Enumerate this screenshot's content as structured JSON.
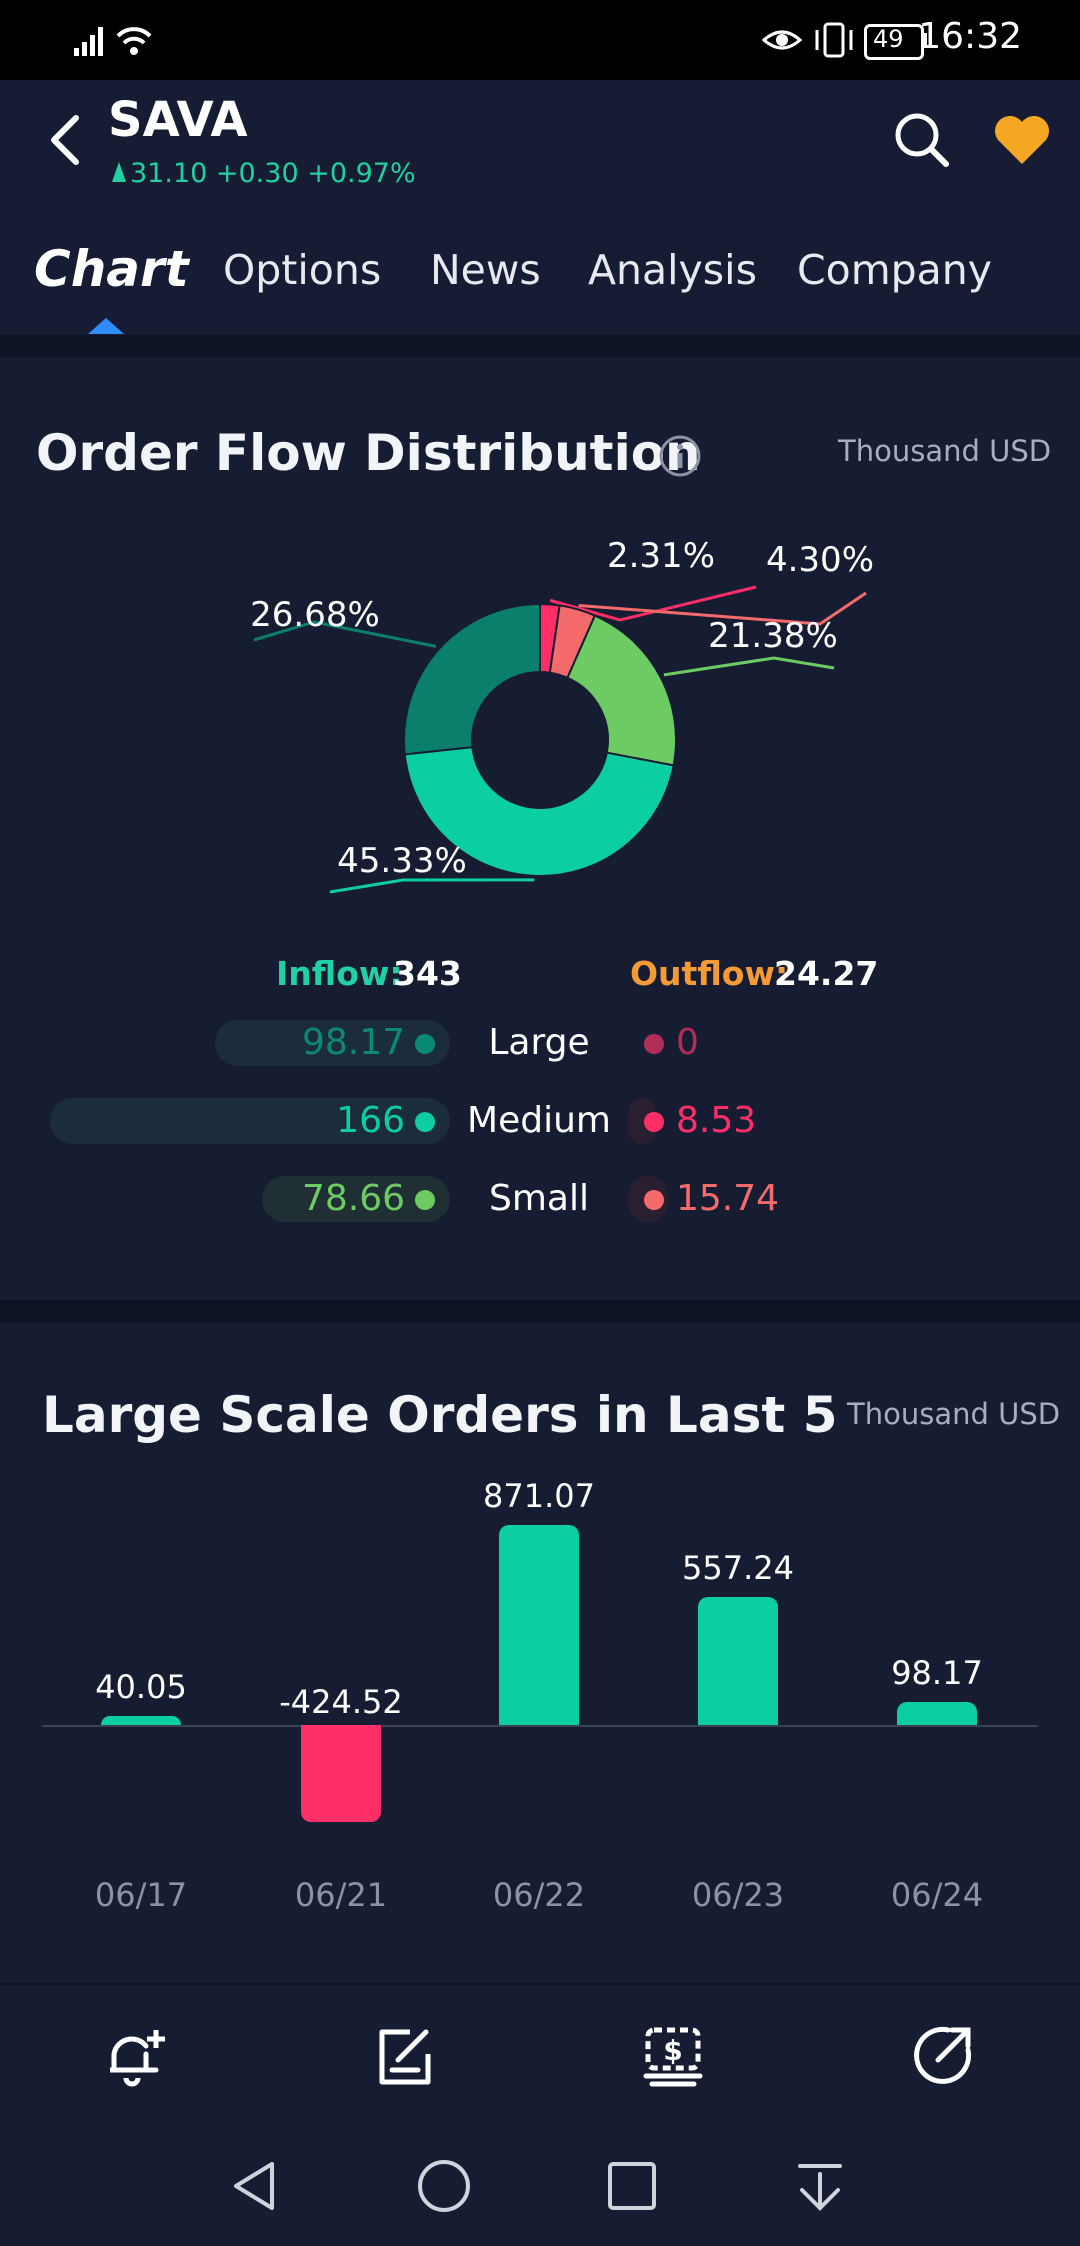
{
  "status_bar": {
    "time": "16:32",
    "battery": "49"
  },
  "header": {
    "symbol": "SAVA",
    "quote": "31.10 +0.30 +0.97%",
    "tabs": [
      {
        "label": "Chart"
      },
      {
        "label": "Options"
      },
      {
        "label": "News"
      },
      {
        "label": "Analysis"
      },
      {
        "label": "Company"
      }
    ]
  },
  "order_flow": {
    "title": "Order Flow Distribution",
    "unit": "Thousand USD",
    "inflow_label": "Inflow:",
    "inflow_value": "343",
    "outflow_label": "Outflow:",
    "outflow_value": "24.27",
    "rows": [
      {
        "label": "Large",
        "inflow": "98.17",
        "outflow": "0",
        "inflow_color": "#0a8a73",
        "outflow_color": "#b02d57"
      },
      {
        "label": "Medium",
        "inflow": "166",
        "outflow": "8.53",
        "inflow_color": "#0bcfa3",
        "outflow_color": "#ff2e66"
      },
      {
        "label": "Small",
        "inflow": "78.66",
        "outflow": "15.74",
        "inflow_color": "#6ccc63",
        "outflow_color": "#f56a6a"
      }
    ]
  },
  "large_orders": {
    "title": "Large Scale Orders in Last 5",
    "unit": "Thousand USD"
  },
  "chart_data": [
    {
      "type": "pie",
      "title": "Order Flow Distribution",
      "slices": [
        {
          "label": "2.31%",
          "value": 2.31,
          "color": "#ff2e66"
        },
        {
          "label": "4.30%",
          "value": 4.3,
          "color": "#f56a6a"
        },
        {
          "label": "21.38%",
          "value": 21.38,
          "color": "#6ccc63"
        },
        {
          "label": "45.33%",
          "value": 45.33,
          "color": "#0bcfa3"
        },
        {
          "label": "26.68%",
          "value": 26.68,
          "color": "#0a7f6b"
        }
      ]
    },
    {
      "type": "bar",
      "title": "Large Scale Orders in Last 5",
      "categories": [
        "06/17",
        "06/21",
        "06/22",
        "06/23",
        "06/24"
      ],
      "values": [
        40.05,
        -424.52,
        871.07,
        557.24,
        98.17
      ],
      "value_labels": [
        "40.05",
        "-424.52",
        "871.07",
        "557.24",
        "98.17"
      ],
      "positive_color": "#0bcfa3",
      "negative_color": "#ff2e66"
    }
  ]
}
